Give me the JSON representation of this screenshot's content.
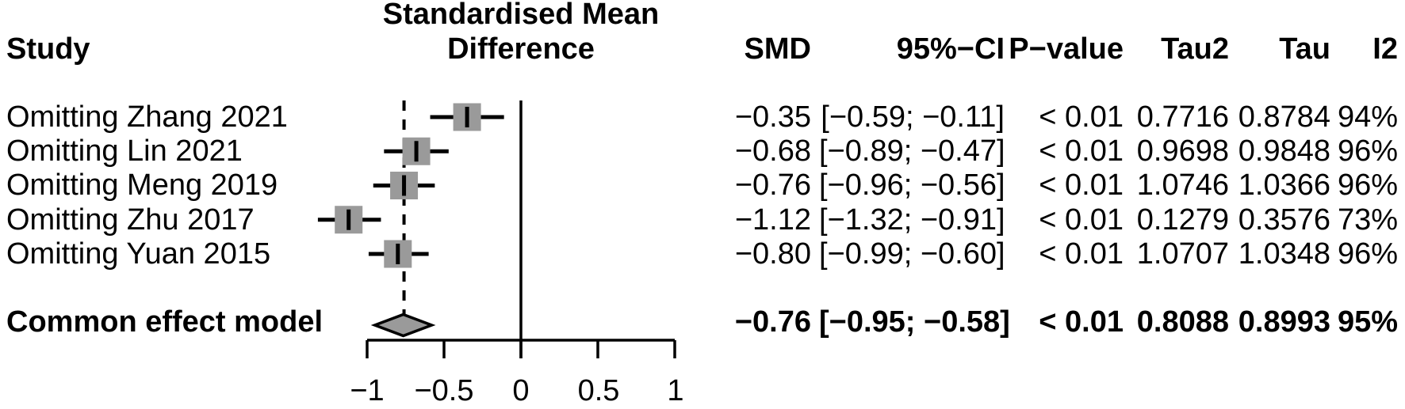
{
  "header": {
    "study": "Study",
    "plot_title_line1": "Standardised Mean",
    "plot_title_line2": "Difference",
    "columns": {
      "smd": "SMD",
      "ci": "95%−CI",
      "pvalue": "P−value",
      "tau2": "Tau2",
      "tau": "Tau",
      "i2": "I2"
    }
  },
  "rows": [
    {
      "label": "Omitting Zhang 2021",
      "smd": "−0.35",
      "ci": "[−0.59; −0.11]",
      "pvalue": "< 0.01",
      "tau2": "0.7716",
      "tau": "0.8784",
      "i2": "94%"
    },
    {
      "label": "Omitting Lin 2021",
      "smd": "−0.68",
      "ci": "[−0.89; −0.47]",
      "pvalue": "< 0.01",
      "tau2": "0.9698",
      "tau": "0.9848",
      "i2": "96%"
    },
    {
      "label": "Omitting Meng 2019",
      "smd": "−0.76",
      "ci": "[−0.96; −0.56]",
      "pvalue": "< 0.01",
      "tau2": "1.0746",
      "tau": "1.0366",
      "i2": "96%"
    },
    {
      "label": "Omitting Zhu 2017",
      "smd": "−1.12",
      "ci": "[−1.32; −0.91]",
      "pvalue": "< 0.01",
      "tau2": "0.1279",
      "tau": "0.3576",
      "i2": "73%"
    },
    {
      "label": "Omitting Yuan 2015",
      "smd": "−0.80",
      "ci": "[−0.99; −0.60]",
      "pvalue": "< 0.01",
      "tau2": "1.0707",
      "tau": "1.0348",
      "i2": "96%"
    }
  ],
  "common": {
    "label": "Common effect model",
    "smd": "−0.76",
    "ci": "[−0.95; −0.58]",
    "pvalue": "< 0.01",
    "tau2": "0.8088",
    "tau": "0.8993",
    "i2": "95%"
  },
  "chart_data": {
    "type": "forest",
    "title": "Standardised Mean Difference",
    "x_range": [
      -1,
      1
    ],
    "x_ticks": [
      -1,
      -0.5,
      0,
      0.5,
      1
    ],
    "axis_labels": [
      "−1",
      "−0.5",
      "0",
      "0.5",
      "1"
    ],
    "zero_line": 0,
    "dashed_reference_line": -0.76,
    "studies": [
      {
        "label": "Omitting Zhang 2021",
        "estimate": -0.35,
        "ci_low": -0.59,
        "ci_high": -0.11,
        "pvalue": "< 0.01",
        "tau2": 0.7716,
        "tau": 0.8784,
        "i2_pct": 94
      },
      {
        "label": "Omitting Lin 2021",
        "estimate": -0.68,
        "ci_low": -0.89,
        "ci_high": -0.47,
        "pvalue": "< 0.01",
        "tau2": 0.9698,
        "tau": 0.9848,
        "i2_pct": 96
      },
      {
        "label": "Omitting Meng 2019",
        "estimate": -0.76,
        "ci_low": -0.96,
        "ci_high": -0.56,
        "pvalue": "< 0.01",
        "tau2": 1.0746,
        "tau": 1.0366,
        "i2_pct": 96
      },
      {
        "label": "Omitting Zhu 2017",
        "estimate": -1.12,
        "ci_low": -1.32,
        "ci_high": -0.91,
        "pvalue": "< 0.01",
        "tau2": 0.1279,
        "tau": 0.3576,
        "i2_pct": 73
      },
      {
        "label": "Omitting Yuan 2015",
        "estimate": -0.8,
        "ci_low": -0.99,
        "ci_high": -0.6,
        "pvalue": "< 0.01",
        "tau2": 1.0707,
        "tau": 1.0348,
        "i2_pct": 96
      }
    ],
    "summary": {
      "label": "Common effect model",
      "estimate": -0.76,
      "ci_low": -0.95,
      "ci_high": -0.58,
      "pvalue": "< 0.01",
      "tau2": 0.8088,
      "tau": 0.8993,
      "i2_pct": 95
    },
    "colors": {
      "marker_fill": "#9a9a9a",
      "diamond_fill": "#9a9a9a",
      "line": "#000000",
      "text": "#000000",
      "background": "#ffffff"
    }
  }
}
